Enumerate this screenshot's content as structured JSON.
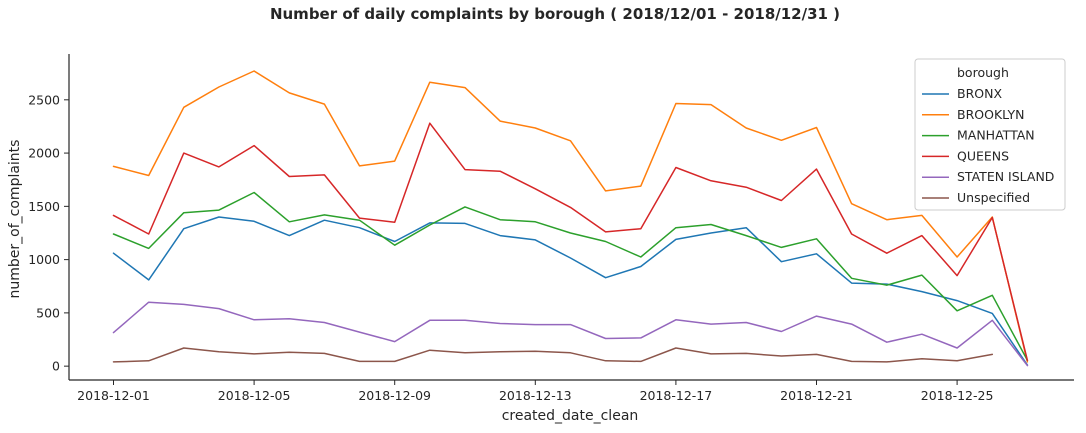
{
  "chart_data": {
    "type": "line",
    "title": "Number of daily complaints by borough  ( 2018/12/01 - 2018/12/31 )",
    "xlabel": "created_date_clean",
    "ylabel": "number_of_complaints",
    "x": [
      "2018-12-01",
      "2018-12-02",
      "2018-12-03",
      "2018-12-04",
      "2018-12-05",
      "2018-12-06",
      "2018-12-07",
      "2018-12-08",
      "2018-12-09",
      "2018-12-10",
      "2018-12-11",
      "2018-12-12",
      "2018-12-13",
      "2018-12-14",
      "2018-12-15",
      "2018-12-16",
      "2018-12-17",
      "2018-12-18",
      "2018-12-19",
      "2018-12-20",
      "2018-12-21",
      "2018-12-22",
      "2018-12-23",
      "2018-12-24",
      "2018-12-25",
      "2018-12-26",
      "2018-12-27"
    ],
    "x_ticks": [
      "2018-12-01",
      "2018-12-05",
      "2018-12-09",
      "2018-12-13",
      "2018-12-17",
      "2018-12-21",
      "2018-12-25"
    ],
    "ylim": [
      -130,
      2930
    ],
    "y_ticks": [
      0,
      500,
      1000,
      1500,
      2000,
      2500
    ],
    "grid": false,
    "legend": {
      "title": "borough",
      "position": "top-right"
    },
    "series": [
      {
        "name": "BRONX",
        "color": "#1f77b4",
        "values": [
          1060,
          810,
          1290,
          1400,
          1360,
          1225,
          1370,
          1300,
          1170,
          1345,
          1340,
          1225,
          1185,
          1015,
          830,
          935,
          1190,
          1250,
          1300,
          980,
          1055,
          780,
          770,
          700,
          615,
          495,
          10
        ]
      },
      {
        "name": "BROOKLYN",
        "color": "#ff7f0e",
        "values": [
          1875,
          1790,
          2430,
          2620,
          2770,
          2565,
          2460,
          1880,
          1925,
          2665,
          2615,
          2300,
          2235,
          2115,
          1645,
          1690,
          2465,
          2455,
          2235,
          2120,
          2240,
          1525,
          1375,
          1415,
          1025,
          1400,
          40
        ]
      },
      {
        "name": "MANHATTAN",
        "color": "#2ca02c",
        "values": [
          1240,
          1105,
          1440,
          1465,
          1630,
          1355,
          1420,
          1370,
          1135,
          1325,
          1495,
          1375,
          1355,
          1250,
          1170,
          1025,
          1300,
          1330,
          1225,
          1115,
          1195,
          825,
          760,
          855,
          520,
          665,
          55
        ]
      },
      {
        "name": "QUEENS",
        "color": "#d62728",
        "values": [
          1415,
          1240,
          2000,
          1870,
          2070,
          1780,
          1795,
          1390,
          1350,
          2280,
          1845,
          1830,
          1665,
          1490,
          1260,
          1290,
          1865,
          1740,
          1680,
          1555,
          1850,
          1240,
          1060,
          1225,
          850,
          1395,
          55
        ]
      },
      {
        "name": "STATEN ISLAND",
        "color": "#9467bd",
        "values": [
          315,
          600,
          580,
          540,
          435,
          445,
          410,
          320,
          230,
          430,
          430,
          400,
          390,
          390,
          260,
          265,
          435,
          395,
          410,
          325,
          470,
          395,
          225,
          300,
          170,
          430,
          5
        ]
      },
      {
        "name": "Unspecified",
        "color": "#8c564b",
        "values": [
          40,
          50,
          170,
          135,
          115,
          130,
          120,
          45,
          45,
          150,
          125,
          135,
          140,
          125,
          50,
          45,
          170,
          115,
          120,
          95,
          110,
          45,
          40,
          70,
          50,
          110,
          null
        ]
      }
    ]
  }
}
